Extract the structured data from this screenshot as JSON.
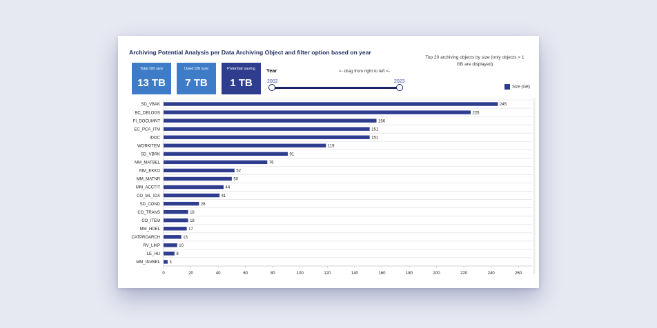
{
  "title": "Archiving Potential Analysis per Data Archiving Object and filter option based on year",
  "top_note": "Top 20 archiving objects by size (only objects > 1 GB are displayed)",
  "kpis": [
    {
      "label": "Total DB size",
      "value": "13 TB"
    },
    {
      "label": "Used DB size",
      "value": "7 TB"
    },
    {
      "label": "Potential saving",
      "value": "1 TB"
    }
  ],
  "filter": {
    "label": "Year",
    "hint": "<- drag from right to left <-",
    "min": "2002",
    "max": "2023"
  },
  "colors": {
    "bar": "#2f3d8f",
    "kpi_light": "#3e7cc7",
    "kpi_dark": "#2f3d8f",
    "title": "#1e2a5e"
  },
  "chart_data": {
    "type": "bar",
    "orientation": "horizontal",
    "categories": [
      "SD_VBAK",
      "BC_DBLOGS",
      "FI_DOCUMNT",
      "EC_PCA_ITM",
      "IDOC",
      "WORKITEM",
      "SD_VBRK",
      "MM_MATBEL",
      "MM_EKKO",
      "MM_MATNR",
      "MM_ACCTIT",
      "CO_ML_IDX",
      "SD_COND",
      "CO_TRANS",
      "CO_ITEM",
      "MM_HDEL",
      "CATPROARCH",
      "RV_LIKP",
      "LE_HU",
      "MM_INVBEL"
    ],
    "series": [
      {
        "name": "Size (GB)",
        "values": [
          245,
          225,
          156,
          151,
          151,
          119,
          91,
          76,
          52,
          50,
          44,
          41,
          26,
          18,
          18,
          17,
          13,
          10,
          8,
          3
        ]
      }
    ],
    "xlim": [
      0,
      270
    ],
    "xticks": [
      0,
      20,
      40,
      60,
      80,
      100,
      120,
      140,
      160,
      180,
      200,
      220,
      240,
      260
    ],
    "legend_position": "top-right",
    "grid": true
  }
}
